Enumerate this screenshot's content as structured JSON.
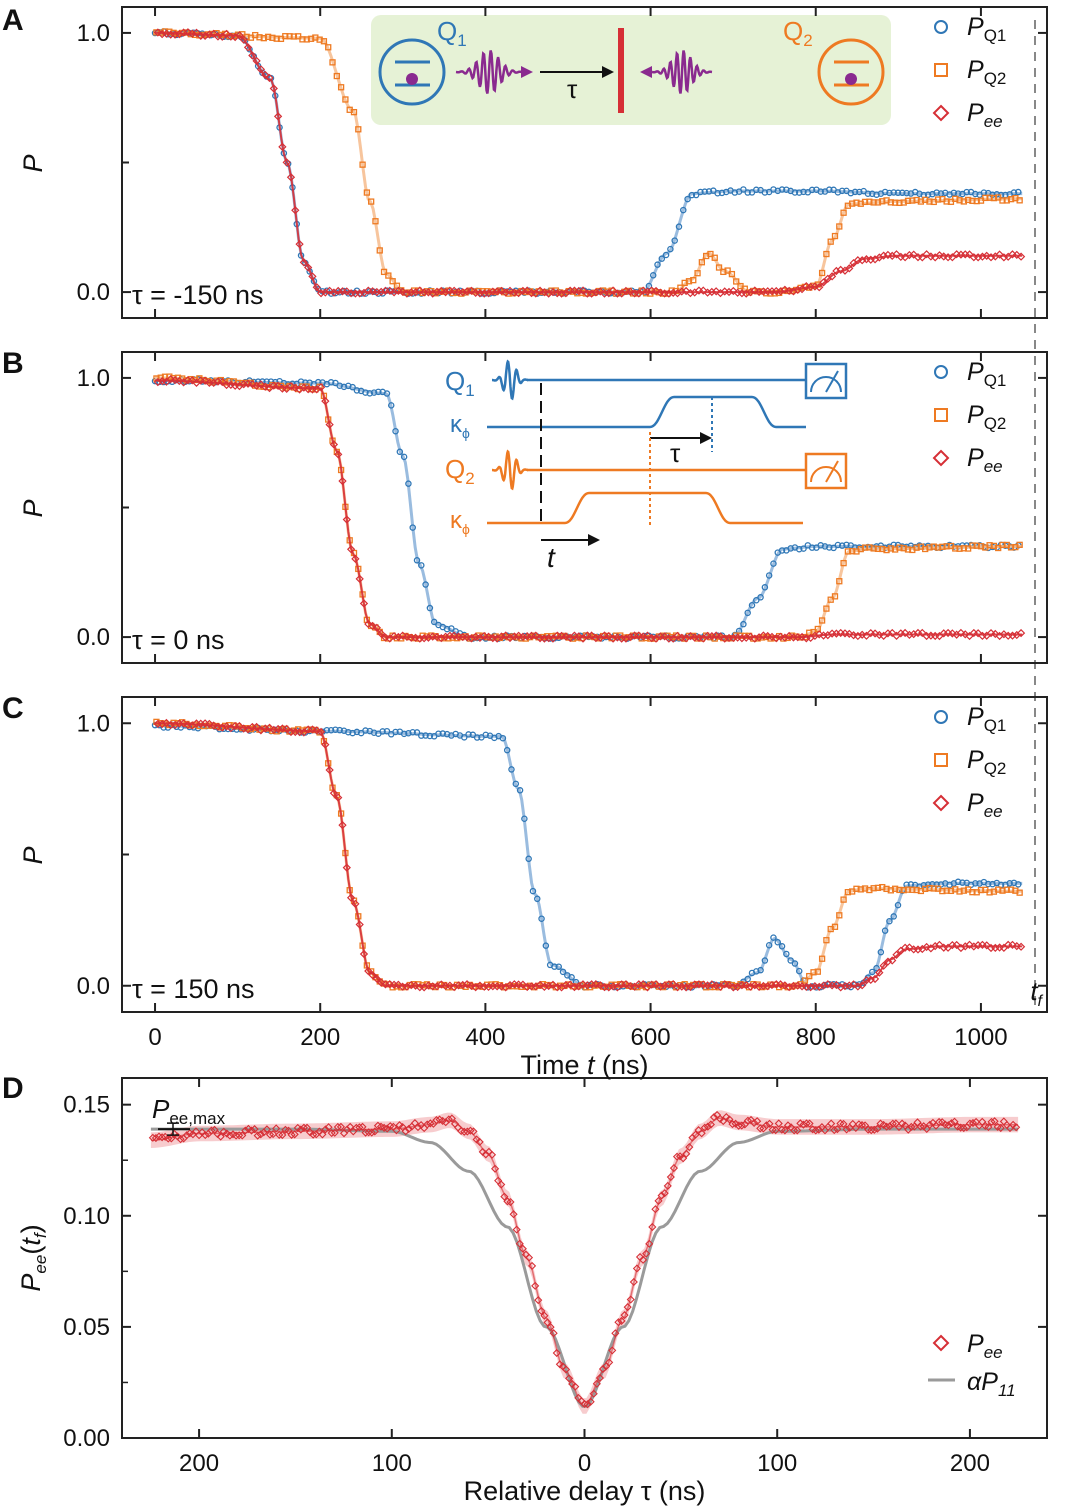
{
  "colors": {
    "q1": "#2f77b6",
    "q2": "#ee7a22",
    "ee": "#d62f36",
    "theory": "#9a9a9a",
    "inset_bg": "#e6f2d6",
    "q1_line": "#8fb5dc",
    "q2_line": "#f6bf92"
  },
  "legend": {
    "pq1": "P",
    "pq1_sub": "Q1",
    "pq2": "P",
    "pq2_sub": "Q2",
    "pee": "P",
    "pee_sub": "ee",
    "alpha_label": "αP",
    "alpha_sub": "11"
  },
  "tf_label": "t",
  "tf_sub": "f",
  "panelA_inset": {
    "q1": "Q",
    "q1_sub": "1",
    "q2": "Q",
    "q2_sub": "2",
    "tau": "τ"
  },
  "panelB_inset": {
    "q1": "Q",
    "q1_sub": "1",
    "q2": "Q",
    "q2_sub": "2",
    "kappa": "κ",
    "kappa_sub": "ϕ",
    "tau": "τ",
    "t": "t"
  },
  "pee_max_label": "P",
  "pee_max_sub": "ee,max",
  "chart_data": [
    {
      "panel": "A",
      "type": "line",
      "annotation": "τ = -150 ns",
      "xlabel": "",
      "ylabel": "P",
      "xlim": [
        -40,
        1080
      ],
      "ylim": [
        -0.1,
        1.1
      ],
      "yticks": [
        "1.0",
        "0.0"
      ],
      "ytick_values": [
        1.0,
        0.0
      ],
      "series": [
        {
          "name": "PQ1",
          "x": [
            0,
            100,
            140,
            160,
            180,
            200,
            300,
            500,
            590,
            620,
            650,
            700,
            800,
            900,
            1050
          ],
          "values": [
            1.0,
            0.99,
            0.82,
            0.5,
            0.12,
            0.0,
            0.0,
            0.0,
            0.0,
            0.15,
            0.38,
            0.39,
            0.39,
            0.38,
            0.38
          ]
        },
        {
          "name": "PQ2",
          "x": [
            0,
            200,
            240,
            260,
            280,
            300,
            400,
            630,
            650,
            670,
            690,
            720,
            760,
            800,
            820,
            840,
            900,
            1050
          ],
          "values": [
            1.0,
            0.98,
            0.7,
            0.35,
            0.07,
            0.0,
            0.0,
            0.0,
            0.05,
            0.15,
            0.08,
            0.0,
            0.0,
            0.02,
            0.2,
            0.34,
            0.35,
            0.36
          ]
        },
        {
          "name": "Pee",
          "x": [
            0,
            100,
            140,
            160,
            180,
            200,
            600,
            750,
            800,
            830,
            860,
            900,
            1050
          ],
          "values": [
            1.0,
            0.99,
            0.82,
            0.5,
            0.12,
            0.0,
            0.0,
            0.0,
            0.02,
            0.08,
            0.13,
            0.14,
            0.14
          ]
        }
      ]
    },
    {
      "panel": "B",
      "type": "line",
      "annotation": "τ = 0 ns",
      "xlabel": "",
      "ylabel": "P",
      "xlim": [
        -40,
        1080
      ],
      "ylim": [
        -0.1,
        1.1
      ],
      "yticks": [
        "1.0",
        "0.0"
      ],
      "ytick_values": [
        1.0,
        0.0
      ],
      "series": [
        {
          "name": "PQ1",
          "x": [
            0,
            200,
            280,
            300,
            320,
            340,
            380,
            450,
            700,
            730,
            760,
            800,
            1050
          ],
          "values": [
            0.99,
            0.98,
            0.94,
            0.7,
            0.28,
            0.05,
            0.0,
            0.0,
            0.0,
            0.15,
            0.34,
            0.35,
            0.35
          ]
        },
        {
          "name": "PQ2",
          "x": [
            0,
            200,
            220,
            240,
            260,
            280,
            320,
            780,
            800,
            820,
            840,
            860,
            1050
          ],
          "values": [
            1.0,
            0.96,
            0.72,
            0.32,
            0.05,
            0.0,
            0.0,
            0.0,
            0.02,
            0.15,
            0.33,
            0.34,
            0.35
          ]
        },
        {
          "name": "Pee",
          "x": [
            0,
            200,
            220,
            240,
            260,
            280,
            320,
            780,
            820,
            860,
            1050
          ],
          "values": [
            0.99,
            0.96,
            0.72,
            0.32,
            0.05,
            0.0,
            0.0,
            0.0,
            0.01,
            0.01,
            0.01
          ]
        }
      ]
    },
    {
      "panel": "C",
      "type": "line",
      "annotation": "τ = 150 ns",
      "xlabel": "Time t (ns)",
      "ylabel": "P",
      "xlim": [
        -40,
        1080
      ],
      "ylim": [
        -0.1,
        1.1
      ],
      "xticks": [
        "0",
        "200",
        "400",
        "600",
        "800",
        "1000"
      ],
      "xtick_values": [
        0,
        200,
        400,
        600,
        800,
        1000
      ],
      "yticks": [
        "1.0",
        "0.0"
      ],
      "ytick_values": [
        1.0,
        0.0
      ],
      "series": [
        {
          "name": "PQ1",
          "x": [
            0,
            200,
            420,
            440,
            460,
            480,
            520,
            700,
            730,
            750,
            770,
            790,
            850,
            870,
            890,
            910,
            950,
            1050
          ],
          "values": [
            0.99,
            0.97,
            0.95,
            0.75,
            0.35,
            0.08,
            0.0,
            0.0,
            0.05,
            0.18,
            0.1,
            0.0,
            0.0,
            0.05,
            0.25,
            0.38,
            0.39,
            0.39
          ]
        },
        {
          "name": "PQ2",
          "x": [
            0,
            200,
            220,
            240,
            260,
            280,
            320,
            780,
            800,
            820,
            840,
            860,
            1050
          ],
          "values": [
            1.0,
            0.97,
            0.72,
            0.32,
            0.05,
            0.0,
            0.0,
            0.0,
            0.05,
            0.22,
            0.36,
            0.37,
            0.36
          ]
        },
        {
          "name": "Pee",
          "x": [
            0,
            200,
            220,
            240,
            260,
            280,
            320,
            850,
            870,
            890,
            910,
            950,
            1050
          ],
          "values": [
            1.0,
            0.97,
            0.72,
            0.32,
            0.05,
            0.0,
            0.0,
            0.0,
            0.03,
            0.1,
            0.14,
            0.15,
            0.15
          ]
        }
      ]
    },
    {
      "panel": "D",
      "type": "line",
      "xlabel": "Relative delay τ (ns)",
      "ylabel": "Pee(tf)",
      "xlim": [
        -240,
        240
      ],
      "ylim": [
        0.0,
        0.162
      ],
      "xticks": [
        "200",
        "100",
        "0",
        "100",
        "200"
      ],
      "xtick_values": [
        -200,
        -100,
        0,
        100,
        200
      ],
      "yticks": [
        "0.15",
        "0.10",
        "0.05",
        "0.00"
      ],
      "ytick_values": [
        0.15,
        0.1,
        0.05,
        0.0
      ],
      "pee_max": 0.139,
      "series": [
        {
          "name": "Pee",
          "x": [
            -225,
            -200,
            -150,
            -100,
            -80,
            -70,
            -60,
            -50,
            -40,
            -30,
            -20,
            -10,
            0,
            10,
            20,
            30,
            40,
            50,
            60,
            70,
            80,
            100,
            150,
            200,
            225
          ],
          "values": [
            0.134,
            0.137,
            0.138,
            0.139,
            0.141,
            0.143,
            0.138,
            0.128,
            0.108,
            0.081,
            0.054,
            0.03,
            0.014,
            0.03,
            0.054,
            0.081,
            0.108,
            0.127,
            0.138,
            0.144,
            0.142,
            0.14,
            0.14,
            0.141,
            0.141
          ]
        },
        {
          "name": "αP11",
          "x": [
            -225,
            -150,
            -100,
            -80,
            -60,
            -40,
            -20,
            0,
            20,
            40,
            60,
            80,
            100,
            150,
            225
          ],
          "values": [
            0.139,
            0.139,
            0.138,
            0.133,
            0.12,
            0.095,
            0.05,
            0.014,
            0.05,
            0.095,
            0.12,
            0.133,
            0.138,
            0.139,
            0.139
          ]
        }
      ]
    }
  ]
}
